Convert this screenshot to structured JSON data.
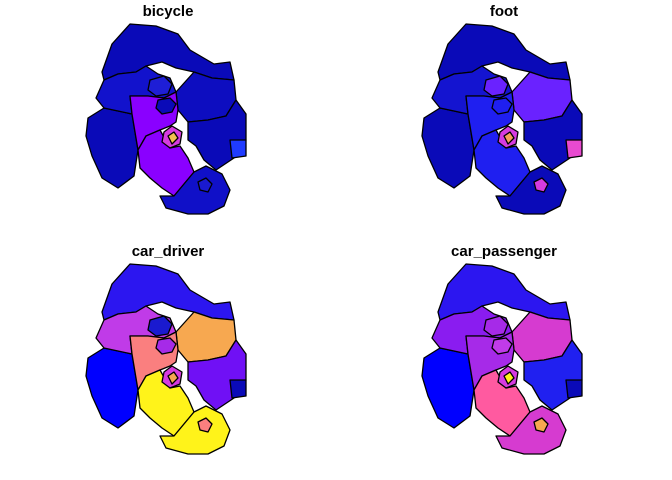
{
  "figure": {
    "panels": [
      {
        "title": "bicycle",
        "fills": {
          "west": "#0a0ab8",
          "north": "#0a0ab8",
          "nw_inner": "#1212cc",
          "ne_inner": "#0d0dc0",
          "center": "#8a00ff",
          "east": "#0a0ab8",
          "far_east": "#1f3bff",
          "south": "#8a00ff",
          "south_east": "#1010c8",
          "small_inner": "#1e1ed6",
          "town": "#d63be0",
          "town_core": "#f2c14e",
          "ring_blob": "#0a0ab8",
          "se_spot": "#1a1ad0"
        }
      },
      {
        "title": "foot",
        "fills": {
          "west": "#0a0ab8",
          "north": "#0a0ab8",
          "nw_inner": "#1414d0",
          "ne_inner": "#6a22ff",
          "center": "#1f1ff0",
          "east": "#0a0ab8",
          "far_east": "#e84ad0",
          "south": "#1f1ff0",
          "south_east": "#0a0ab8",
          "small_inner": "#6a22ff",
          "town": "#d63be0",
          "town_core": "#f7a05a",
          "ring_blob": "#1f1ff0",
          "se_spot": "#d63be0"
        }
      },
      {
        "title": "car_driver",
        "fills": {
          "west": "#0000ff",
          "north": "#2c16f0",
          "nw_inner": "#c03be8",
          "ne_inner": "#f7a850",
          "center": "#fa7f7f",
          "east": "#7010f5",
          "far_east": "#0a0ab8",
          "south": "#fff31a",
          "south_east": "#fff31a",
          "small_inner": "#1a1ad0",
          "town": "#d63be0",
          "town_core": "#f7a850",
          "ring_blob": "#a62ae8",
          "se_spot": "#fa7f7f"
        }
      },
      {
        "title": "car_passenger",
        "fills": {
          "west": "#0000ff",
          "north": "#2c16f0",
          "nw_inner": "#8a1cf0",
          "ne_inner": "#d63bd0",
          "center": "#a62ae8",
          "east": "#2020f0",
          "far_east": "#0a0ab8",
          "south": "#ff5aa0",
          "south_east": "#d63bd0",
          "small_inner": "#a62ae8",
          "town": "#d63be0",
          "town_core": "#fff31a",
          "ring_blob": "#c03be8",
          "se_spot": "#f7a850"
        }
      }
    ]
  }
}
